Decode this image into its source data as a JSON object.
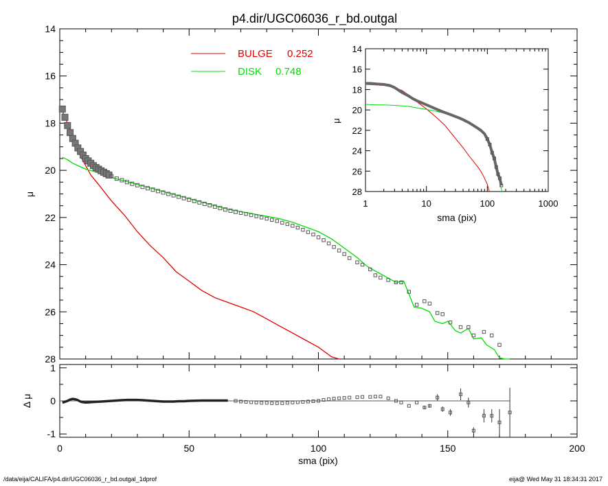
{
  "title": "p4.dir/UGC06036_r_bd.outgal",
  "footer": {
    "path": "/data/eija/CALIFA/p4.dir/UGC06036_r_bd.outgal_1dprof",
    "stamp": "eija@  Wed May 31 18:34:31 2017"
  },
  "colors": {
    "bulge": "#dd0000",
    "disk": "#00dd00",
    "data": "#555555",
    "axes": "#000000"
  },
  "chart_data": [
    {
      "id": "main",
      "type": "line",
      "xlabel": "sma (pix)",
      "ylabel": "μ",
      "xlim": [
        0,
        200
      ],
      "ylim": [
        28,
        14
      ],
      "y_reversed": true,
      "xticks": [
        0,
        50,
        100,
        150,
        200
      ],
      "yticks": [
        14,
        16,
        18,
        20,
        22,
        24,
        26,
        28
      ],
      "legend_position": "top-center",
      "legend": [
        {
          "label": "BULGE",
          "value": "0.252",
          "color": "#dd0000"
        },
        {
          "label": "DISK",
          "value": "0.748",
          "color": "#00dd00"
        }
      ],
      "series": [
        {
          "name": "BULGE",
          "color": "#dd0000",
          "x": [
            1,
            2,
            3,
            4,
            5,
            6,
            8,
            10,
            12,
            15,
            20,
            25,
            30,
            35,
            40,
            45,
            50,
            55,
            60,
            65,
            70,
            75,
            80,
            85,
            90,
            95,
            100,
            105,
            108
          ],
          "y": [
            17.5,
            17.75,
            18.0,
            18.3,
            18.6,
            18.9,
            19.4,
            19.8,
            20.2,
            20.6,
            21.3,
            21.9,
            22.6,
            23.2,
            23.7,
            24.3,
            24.7,
            25.1,
            25.4,
            25.6,
            25.8,
            26.0,
            26.3,
            26.6,
            26.9,
            27.2,
            27.5,
            27.9,
            28.0
          ]
        },
        {
          "name": "DISK",
          "color": "#00dd00",
          "x": [
            1,
            3,
            5,
            8,
            10,
            15,
            20,
            25,
            30,
            35,
            40,
            45,
            50,
            55,
            60,
            65,
            70,
            75,
            80,
            85,
            90,
            95,
            100,
            105,
            110,
            115,
            118,
            120,
            125,
            130,
            133,
            135,
            137,
            140,
            143,
            145,
            148,
            150,
            153,
            155,
            158,
            160,
            163,
            165,
            168,
            170,
            172,
            174
          ],
          "y": [
            19.45,
            19.55,
            19.7,
            19.85,
            19.95,
            20.1,
            20.3,
            20.45,
            20.6,
            20.75,
            20.9,
            21.05,
            21.2,
            21.35,
            21.5,
            21.65,
            21.75,
            21.85,
            21.95,
            22.05,
            22.2,
            22.4,
            22.6,
            22.9,
            23.3,
            23.7,
            24.0,
            24.15,
            24.45,
            24.75,
            24.7,
            25.25,
            25.8,
            25.85,
            26.0,
            26.4,
            26.5,
            26.4,
            26.8,
            26.9,
            26.7,
            27.15,
            27.1,
            27.4,
            27.6,
            27.95,
            28.0,
            28.0
          ]
        }
      ],
      "data_points": {
        "name": "",
        "x": [
          1,
          2,
          3,
          4,
          5,
          6,
          7,
          8,
          9,
          10,
          11,
          12,
          13,
          14,
          15,
          16,
          17,
          18,
          19,
          20,
          22,
          24,
          26,
          28,
          30,
          32,
          34,
          36,
          38,
          40,
          42,
          44,
          46,
          48,
          50,
          52,
          54,
          56,
          58,
          60,
          62,
          64,
          66,
          68,
          70,
          72,
          74,
          76,
          78,
          80,
          82,
          84,
          86,
          88,
          90,
          92,
          94,
          96,
          98,
          100,
          102,
          104,
          106,
          108,
          110,
          112,
          115,
          117,
          120,
          122,
          124,
          127,
          130,
          132,
          135,
          138,
          141,
          143,
          146,
          148,
          151,
          155,
          158,
          160,
          164,
          167,
          170
        ],
        "y": [
          17.4,
          17.75,
          18.1,
          18.4,
          18.65,
          18.85,
          19.05,
          19.2,
          19.35,
          19.5,
          19.6,
          19.7,
          19.8,
          19.88,
          19.95,
          20.02,
          20.08,
          20.14,
          20.2,
          20.25,
          20.35,
          20.42,
          20.5,
          20.57,
          20.63,
          20.7,
          20.76,
          20.82,
          20.88,
          20.94,
          21.0,
          21.06,
          21.12,
          21.18,
          21.24,
          21.3,
          21.36,
          21.42,
          21.48,
          21.54,
          21.6,
          21.66,
          21.71,
          21.76,
          21.81,
          21.85,
          21.9,
          21.95,
          22.0,
          22.05,
          22.1,
          22.15,
          22.22,
          22.28,
          22.35,
          22.43,
          22.52,
          22.62,
          22.72,
          22.84,
          22.96,
          23.1,
          23.25,
          23.4,
          23.55,
          23.72,
          23.9,
          24.0,
          24.2,
          24.45,
          24.55,
          24.65,
          24.75,
          24.75,
          25.15,
          25.7,
          25.55,
          25.65,
          26.05,
          26.1,
          26.45,
          26.65,
          26.65,
          27.0,
          26.85,
          27.0,
          27.4
        ]
      }
    },
    {
      "id": "inset",
      "type": "line",
      "xlabel": "sma (pix)",
      "ylabel": "μ",
      "xscale": "log",
      "xlim": [
        1,
        1000
      ],
      "ylim": [
        28,
        14
      ],
      "y_reversed": true,
      "xticks": [
        1,
        10,
        100,
        1000
      ],
      "xtick_labels": [
        "1",
        "10",
        "100",
        "1000"
      ],
      "yticks": [
        14,
        16,
        18,
        20,
        22,
        24,
        26,
        28
      ],
      "series": [
        {
          "name": "BULGE",
          "color": "#dd0000",
          "x": [
            1,
            1.5,
            2,
            3,
            4,
            5,
            7,
            10,
            15,
            20,
            30,
            40,
            50,
            60,
            70,
            80,
            90,
            100,
            108
          ],
          "y": [
            17.5,
            17.55,
            17.6,
            17.8,
            18.1,
            18.5,
            19.2,
            19.9,
            20.8,
            21.5,
            22.8,
            23.7,
            24.5,
            25.1,
            25.6,
            26.1,
            26.7,
            27.3,
            28.0
          ]
        },
        {
          "name": "DISK",
          "color": "#00dd00",
          "x": [
            1,
            1.5,
            2,
            3,
            5,
            7,
            10,
            15,
            20,
            30,
            40,
            50,
            60,
            80,
            100,
            120,
            140,
            160,
            174
          ],
          "y": [
            19.45,
            19.5,
            19.5,
            19.55,
            19.65,
            19.8,
            19.95,
            20.15,
            20.35,
            20.6,
            20.9,
            21.2,
            21.5,
            21.9,
            22.6,
            23.9,
            25.8,
            27.1,
            28.0
          ]
        }
      ],
      "data_points": {
        "name": "",
        "x": [
          1,
          1.2,
          1.5,
          2,
          2.5,
          3,
          4,
          5,
          6,
          7,
          8,
          10,
          12,
          15,
          18,
          22,
          26,
          30,
          35,
          40,
          50,
          60,
          70,
          80,
          90,
          100,
          110,
          120,
          130,
          140,
          150,
          160,
          170
        ],
        "y": [
          17.4,
          17.4,
          17.45,
          17.5,
          17.6,
          17.8,
          18.3,
          18.6,
          18.9,
          19.1,
          19.25,
          19.5,
          19.7,
          19.95,
          20.15,
          20.35,
          20.5,
          20.65,
          20.8,
          20.95,
          21.25,
          21.55,
          21.8,
          22.05,
          22.35,
          22.85,
          23.4,
          24.2,
          24.75,
          25.6,
          26.3,
          26.7,
          27.4
        ]
      }
    },
    {
      "id": "residual",
      "type": "scatter",
      "xlabel": "sma (pix)",
      "ylabel": "Δ μ",
      "xlim": [
        0,
        200
      ],
      "ylim": [
        -1.1,
        1.1
      ],
      "xticks": [
        0,
        50,
        100,
        150,
        200
      ],
      "xtick_labels": [
        "0",
        "50",
        "100",
        "150",
        "200"
      ],
      "yticks": [
        -1,
        0,
        1
      ],
      "ytick_labels": [
        "-1",
        "0",
        "1"
      ],
      "zero_line_xmax": 174,
      "curve": {
        "x": [
          1,
          2,
          3,
          4,
          5,
          6,
          7,
          8,
          9,
          10,
          12,
          14,
          16,
          18,
          20,
          22,
          24,
          26,
          28,
          30,
          32,
          34,
          36,
          38,
          40,
          42,
          44,
          46,
          48,
          50,
          55,
          60,
          65
        ],
        "y": [
          -0.05,
          -0.03,
          0.0,
          0.04,
          0.06,
          0.05,
          0.02,
          -0.02,
          -0.04,
          -0.05,
          -0.04,
          -0.03,
          -0.02,
          -0.01,
          0.0,
          0.01,
          0.02,
          0.03,
          0.03,
          0.03,
          0.02,
          0.01,
          0.0,
          -0.01,
          -0.02,
          -0.02,
          -0.02,
          -0.01,
          -0.01,
          0.0,
          0.01,
          0.01,
          0.01
        ]
      },
      "points": {
        "x": [
          68,
          70,
          72,
          74,
          76,
          78,
          80,
          82,
          84,
          86,
          88,
          90,
          92,
          94,
          96,
          98,
          100,
          102,
          104,
          106,
          108,
          110,
          112,
          115,
          117,
          120,
          122,
          124,
          127,
          130,
          132,
          135,
          138,
          141,
          143,
          146,
          148,
          151,
          155,
          158,
          160,
          164,
          167,
          170,
          174
        ],
        "y": [
          0.0,
          -0.02,
          -0.03,
          -0.04,
          -0.05,
          -0.06,
          -0.06,
          -0.07,
          -0.07,
          -0.07,
          -0.06,
          -0.05,
          -0.04,
          -0.03,
          -0.02,
          -0.01,
          0.0,
          0.03,
          0.05,
          0.07,
          0.08,
          0.09,
          0.1,
          0.11,
          0.12,
          0.12,
          0.13,
          0.13,
          0.08,
          0.0,
          -0.05,
          -0.15,
          -0.05,
          -0.2,
          -0.15,
          0.1,
          -0.25,
          -0.35,
          0.2,
          -0.05,
          -0.9,
          -0.45,
          -0.45,
          -0.65,
          -0.35
        ],
        "err": [
          0,
          0,
          0,
          0,
          0,
          0,
          0,
          0,
          0,
          0,
          0,
          0,
          0,
          0,
          0,
          0,
          0,
          0,
          0,
          0,
          0,
          0,
          0,
          0,
          0,
          0,
          0,
          0,
          0,
          0,
          0,
          0,
          0,
          0.05,
          0.05,
          0.1,
          0.08,
          0.1,
          0.18,
          0.15,
          0.1,
          0.2,
          0.2,
          0.4,
          0.75
        ]
      }
    }
  ]
}
